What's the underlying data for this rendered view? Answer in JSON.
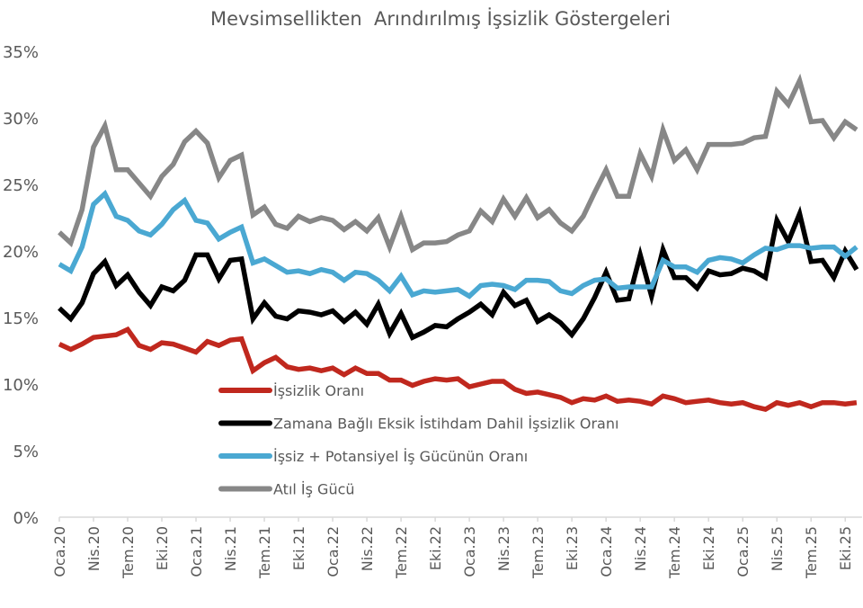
{
  "chart_data": {
    "type": "line",
    "title": "Mevsimsellikten  Arındırılmış İşsizlik Göstergeleri",
    "xlabel": "",
    "ylabel": "",
    "ylim": [
      0,
      35
    ],
    "yticks": [
      "0%",
      "5%",
      "10%",
      "15%",
      "20%",
      "25%",
      "30%",
      "35%"
    ],
    "ytick_values": [
      0,
      5,
      10,
      15,
      20,
      25,
      30,
      35
    ],
    "grid": false,
    "legend_position": "center-bottom (inside plot)",
    "x_start": "2020-01",
    "x_end": "2025-10",
    "xtick_labels": [
      "Oca.20",
      "Nis.20",
      "Tem.20",
      "Eki.20",
      "Oca.21",
      "Nis.21",
      "Tem.21",
      "Eki.21",
      "Oca.22",
      "Nis.22",
      "Tem.22",
      "Eki.22",
      "Oca.23",
      "Nis.23",
      "Tem.23",
      "Eki.23",
      "Oca.24",
      "Nis.24",
      "Tem.24",
      "Eki.24",
      "Oca.25",
      "Nis.25",
      "Tem.25",
      "Eki.25"
    ],
    "xtick_every_n_months": 3,
    "series": [
      {
        "name": "İşsizlik Oranı",
        "color": "#c0281e",
        "values": [
          13.0,
          12.6,
          13.0,
          13.5,
          13.6,
          13.7,
          14.1,
          12.9,
          12.6,
          13.1,
          13.0,
          12.7,
          12.4,
          13.2,
          12.9,
          13.3,
          13.4,
          11.0,
          11.6,
          12.0,
          11.3,
          11.1,
          11.2,
          11.0,
          11.2,
          10.7,
          11.2,
          10.8,
          10.8,
          10.3,
          10.3,
          9.9,
          10.2,
          10.4,
          10.3,
          10.4,
          9.8,
          10.0,
          10.2,
          10.2,
          9.6,
          9.3,
          9.4,
          9.2,
          9.0,
          8.6,
          8.9,
          8.8,
          9.1,
          8.7,
          8.8,
          8.7,
          8.5,
          9.1,
          8.9,
          8.6,
          8.7,
          8.8,
          8.6,
          8.5,
          8.6,
          8.3,
          8.1,
          8.6,
          8.4,
          8.6,
          8.3,
          8.6,
          8.6,
          8.5,
          8.6
        ]
      },
      {
        "name": "Zamana Bağlı Eksik İstihdam Dahil İşsizlik Oranı",
        "color": "#000000",
        "values": [
          15.7,
          14.9,
          16.1,
          18.3,
          19.2,
          17.4,
          18.2,
          16.9,
          15.9,
          17.3,
          17.0,
          17.8,
          19.7,
          19.7,
          17.9,
          19.3,
          19.4,
          14.9,
          16.1,
          15.1,
          14.9,
          15.5,
          15.4,
          15.2,
          15.5,
          14.7,
          15.4,
          14.5,
          16.0,
          13.8,
          15.3,
          13.5,
          13.9,
          14.4,
          14.3,
          14.9,
          15.4,
          16.0,
          15.2,
          16.9,
          15.9,
          16.3,
          14.7,
          15.2,
          14.6,
          13.7,
          14.9,
          16.5,
          18.4,
          16.3,
          16.4,
          19.7,
          16.6,
          20.1,
          18.0,
          18.0,
          17.2,
          18.5,
          18.2,
          18.3,
          18.7,
          18.5,
          18.0,
          22.3,
          20.7,
          22.8,
          19.2,
          19.3,
          18.0,
          20.0,
          18.6
        ]
      },
      {
        "name": "İşsiz + Potansiyel İş Gücünün Oranı",
        "color": "#4aa8d2",
        "values": [
          19.0,
          18.5,
          20.3,
          23.5,
          24.3,
          22.6,
          22.3,
          21.5,
          21.2,
          22.0,
          23.1,
          23.8,
          22.3,
          22.1,
          20.9,
          21.4,
          21.8,
          19.1,
          19.4,
          18.9,
          18.4,
          18.5,
          18.3,
          18.6,
          18.4,
          17.8,
          18.4,
          18.3,
          17.8,
          17.0,
          18.1,
          16.7,
          17.0,
          16.9,
          17.0,
          17.1,
          16.6,
          17.4,
          17.5,
          17.4,
          17.1,
          17.8,
          17.8,
          17.7,
          17.0,
          16.8,
          17.4,
          17.8,
          17.9,
          17.2,
          17.3,
          17.3,
          17.3,
          19.3,
          18.8,
          18.8,
          18.4,
          19.3,
          19.5,
          19.4,
          19.1,
          19.7,
          20.2,
          20.1,
          20.4,
          20.4,
          20.2,
          20.3,
          20.3,
          19.6,
          20.3
        ]
      },
      {
        "name": "Atıl İş Gücü",
        "color": "#878787",
        "values": [
          21.4,
          20.6,
          23.1,
          27.8,
          29.4,
          26.1,
          26.1,
          25.1,
          24.1,
          25.6,
          26.5,
          28.2,
          29.0,
          28.1,
          25.5,
          26.8,
          27.2,
          22.7,
          23.3,
          22.0,
          21.7,
          22.6,
          22.2,
          22.5,
          22.3,
          21.6,
          22.2,
          21.5,
          22.5,
          20.3,
          22.6,
          20.1,
          20.6,
          20.6,
          20.7,
          21.2,
          21.5,
          23.0,
          22.2,
          23.9,
          22.6,
          24.0,
          22.5,
          23.1,
          22.1,
          21.5,
          22.6,
          24.4,
          26.1,
          24.1,
          24.1,
          27.3,
          25.6,
          29.1,
          26.8,
          27.6,
          26.1,
          28.0,
          28.0,
          28.0,
          28.1,
          28.5,
          28.6,
          32.0,
          31.0,
          32.8,
          29.7,
          29.8,
          28.5,
          29.7,
          29.1
        ]
      }
    ]
  }
}
